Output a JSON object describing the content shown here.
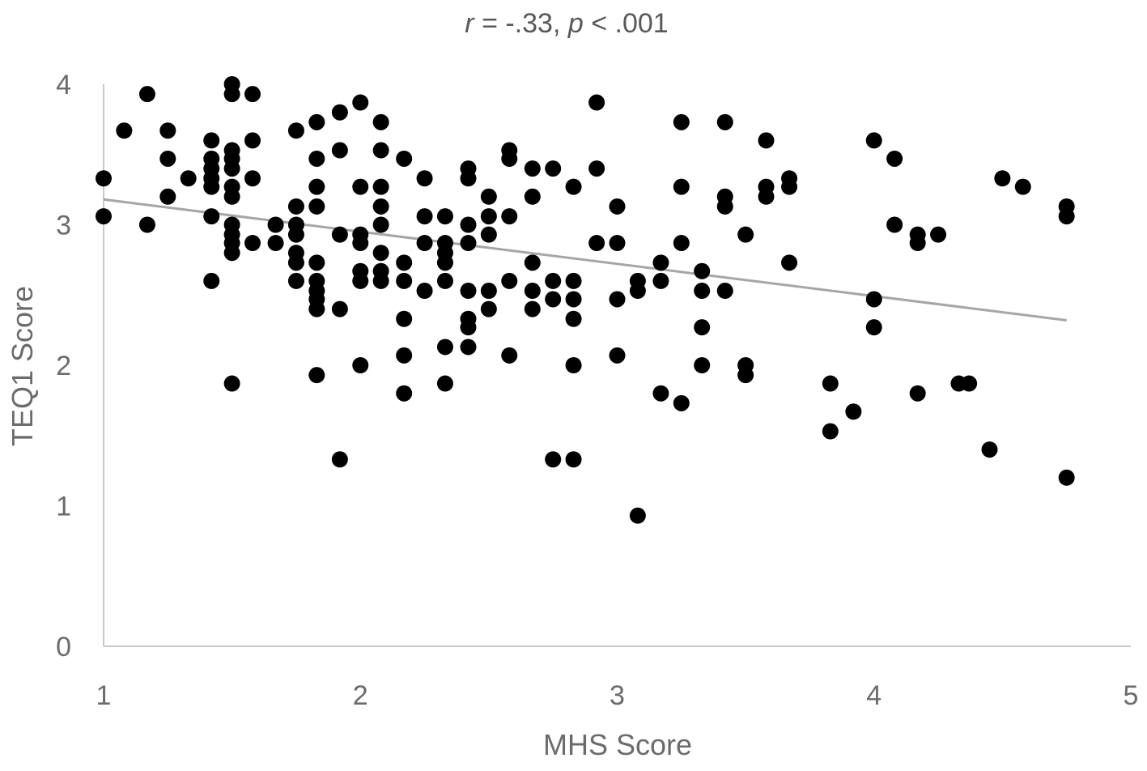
{
  "chart_data": {
    "type": "scatter",
    "title": {
      "r_symbol": "r",
      "r_text": " = -.33, ",
      "p_symbol": "p",
      "p_text": " < .001"
    },
    "xlabel": "MHS Score",
    "ylabel": "TEQ1 Score",
    "xlim": [
      1,
      5
    ],
    "ylim": [
      0,
      4
    ],
    "x_ticks": [
      "1",
      "2",
      "3",
      "4",
      "5"
    ],
    "y_ticks": [
      "0",
      "1",
      "2",
      "3",
      "4"
    ],
    "grid": false,
    "legend": "none",
    "colors": {
      "points": "#000000",
      "trendline": "#a6a6a6",
      "axis": "#c9c9c9",
      "text": "#6b6b6b"
    },
    "trendline": {
      "x": [
        1,
        4.75
      ],
      "y": [
        3.18,
        2.32
      ]
    },
    "points": [
      [
        1.0,
        3.33
      ],
      [
        1.0,
        3.06
      ],
      [
        1.08,
        3.67
      ],
      [
        1.17,
        3.93
      ],
      [
        1.17,
        3.0
      ],
      [
        1.25,
        3.67
      ],
      [
        1.25,
        3.47
      ],
      [
        1.25,
        3.2
      ],
      [
        1.33,
        3.33
      ],
      [
        1.42,
        3.6
      ],
      [
        1.42,
        3.47
      ],
      [
        1.42,
        3.4
      ],
      [
        1.42,
        3.33
      ],
      [
        1.42,
        3.27
      ],
      [
        1.42,
        3.06
      ],
      [
        1.42,
        2.6
      ],
      [
        1.5,
        4.0
      ],
      [
        1.5,
        3.93
      ],
      [
        1.5,
        3.53
      ],
      [
        1.5,
        3.47
      ],
      [
        1.5,
        3.4
      ],
      [
        1.5,
        3.27
      ],
      [
        1.5,
        3.2
      ],
      [
        1.5,
        3.0
      ],
      [
        1.5,
        2.93
      ],
      [
        1.5,
        2.87
      ],
      [
        1.5,
        2.8
      ],
      [
        1.5,
        1.87
      ],
      [
        1.58,
        3.93
      ],
      [
        1.58,
        3.6
      ],
      [
        1.58,
        3.33
      ],
      [
        1.58,
        2.87
      ],
      [
        1.67,
        3.0
      ],
      [
        1.67,
        2.87
      ],
      [
        1.75,
        3.67
      ],
      [
        1.75,
        3.13
      ],
      [
        1.75,
        3.0
      ],
      [
        1.75,
        2.93
      ],
      [
        1.75,
        2.8
      ],
      [
        1.75,
        2.73
      ],
      [
        1.75,
        2.6
      ],
      [
        1.83,
        3.73
      ],
      [
        1.83,
        3.47
      ],
      [
        1.83,
        3.27
      ],
      [
        1.83,
        3.13
      ],
      [
        1.83,
        2.73
      ],
      [
        1.83,
        2.6
      ],
      [
        1.83,
        2.53
      ],
      [
        1.83,
        2.47
      ],
      [
        1.83,
        2.4
      ],
      [
        1.83,
        1.93
      ],
      [
        1.92,
        3.8
      ],
      [
        1.92,
        3.53
      ],
      [
        1.92,
        2.93
      ],
      [
        1.92,
        2.4
      ],
      [
        1.92,
        1.33
      ],
      [
        2.0,
        3.87
      ],
      [
        2.0,
        3.27
      ],
      [
        2.0,
        2.93
      ],
      [
        2.0,
        2.87
      ],
      [
        2.0,
        2.67
      ],
      [
        2.0,
        2.6
      ],
      [
        2.0,
        2.0
      ],
      [
        2.08,
        3.73
      ],
      [
        2.08,
        3.53
      ],
      [
        2.08,
        3.27
      ],
      [
        2.08,
        3.13
      ],
      [
        2.08,
        3.0
      ],
      [
        2.08,
        2.8
      ],
      [
        2.08,
        2.67
      ],
      [
        2.08,
        2.6
      ],
      [
        2.17,
        3.47
      ],
      [
        2.17,
        2.73
      ],
      [
        2.17,
        2.6
      ],
      [
        2.17,
        2.33
      ],
      [
        2.17,
        2.07
      ],
      [
        2.17,
        1.8
      ],
      [
        2.25,
        3.33
      ],
      [
        2.25,
        3.06
      ],
      [
        2.25,
        2.87
      ],
      [
        2.25,
        2.53
      ],
      [
        2.33,
        3.06
      ],
      [
        2.33,
        2.87
      ],
      [
        2.33,
        2.8
      ],
      [
        2.33,
        2.73
      ],
      [
        2.33,
        2.6
      ],
      [
        2.33,
        2.13
      ],
      [
        2.33,
        1.87
      ],
      [
        2.42,
        3.4
      ],
      [
        2.42,
        3.33
      ],
      [
        2.42,
        3.0
      ],
      [
        2.42,
        2.87
      ],
      [
        2.42,
        2.53
      ],
      [
        2.42,
        2.33
      ],
      [
        2.42,
        2.27
      ],
      [
        2.42,
        2.13
      ],
      [
        2.5,
        3.2
      ],
      [
        2.5,
        3.06
      ],
      [
        2.5,
        2.93
      ],
      [
        2.5,
        2.53
      ],
      [
        2.5,
        2.4
      ],
      [
        2.58,
        3.53
      ],
      [
        2.58,
        3.47
      ],
      [
        2.58,
        3.06
      ],
      [
        2.58,
        2.6
      ],
      [
        2.58,
        2.07
      ],
      [
        2.67,
        3.4
      ],
      [
        2.67,
        3.2
      ],
      [
        2.67,
        2.73
      ],
      [
        2.67,
        2.53
      ],
      [
        2.67,
        2.4
      ],
      [
        2.75,
        3.4
      ],
      [
        2.75,
        2.6
      ],
      [
        2.75,
        2.47
      ],
      [
        2.75,
        1.33
      ],
      [
        2.83,
        3.27
      ],
      [
        2.83,
        2.6
      ],
      [
        2.83,
        2.47
      ],
      [
        2.83,
        2.33
      ],
      [
        2.83,
        2.0
      ],
      [
        2.83,
        1.33
      ],
      [
        2.92,
        3.87
      ],
      [
        2.92,
        3.4
      ],
      [
        2.92,
        2.87
      ],
      [
        3.0,
        3.13
      ],
      [
        3.0,
        2.87
      ],
      [
        3.0,
        2.47
      ],
      [
        3.0,
        2.07
      ],
      [
        3.08,
        2.6
      ],
      [
        3.08,
        2.53
      ],
      [
        3.08,
        0.93
      ],
      [
        3.17,
        2.73
      ],
      [
        3.17,
        2.6
      ],
      [
        3.17,
        1.8
      ],
      [
        3.25,
        3.73
      ],
      [
        3.25,
        3.27
      ],
      [
        3.25,
        2.87
      ],
      [
        3.25,
        1.73
      ],
      [
        3.33,
        2.67
      ],
      [
        3.33,
        2.53
      ],
      [
        3.33,
        2.27
      ],
      [
        3.33,
        2.0
      ],
      [
        3.42,
        3.73
      ],
      [
        3.42,
        3.2
      ],
      [
        3.42,
        3.13
      ],
      [
        3.42,
        2.53
      ],
      [
        3.5,
        2.93
      ],
      [
        3.5,
        2.0
      ],
      [
        3.5,
        1.93
      ],
      [
        3.58,
        3.6
      ],
      [
        3.58,
        3.27
      ],
      [
        3.58,
        3.2
      ],
      [
        3.67,
        3.33
      ],
      [
        3.67,
        3.27
      ],
      [
        3.67,
        2.73
      ],
      [
        3.83,
        1.87
      ],
      [
        3.83,
        1.53
      ],
      [
        3.92,
        1.67
      ],
      [
        4.0,
        3.6
      ],
      [
        4.0,
        2.47
      ],
      [
        4.0,
        2.27
      ],
      [
        4.08,
        3.47
      ],
      [
        4.08,
        3.0
      ],
      [
        4.17,
        2.93
      ],
      [
        4.17,
        2.87
      ],
      [
        4.17,
        1.8
      ],
      [
        4.25,
        2.93
      ],
      [
        4.33,
        1.87
      ],
      [
        4.37,
        1.87
      ],
      [
        4.45,
        1.4
      ],
      [
        4.5,
        3.33
      ],
      [
        4.58,
        3.27
      ],
      [
        4.75,
        3.13
      ],
      [
        4.75,
        3.06
      ],
      [
        4.75,
        1.2
      ]
    ]
  }
}
